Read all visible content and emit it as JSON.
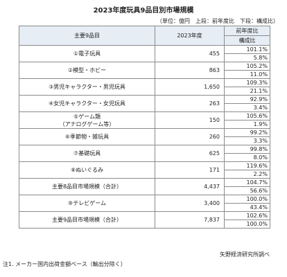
{
  "title": "2023年度玩具9品目別市場規模",
  "unit_note": "（単位：億円　上段：前年度比　下段：構成比）",
  "headers": {
    "category": "主要9品目",
    "year": "2023年度",
    "yoy": "前年度比",
    "share": "構成比"
  },
  "rows": [
    {
      "name": "①電子玩具",
      "size": "455",
      "yoy": "101.1%",
      "share": "5.8%"
    },
    {
      "name": "②模型・ホビー",
      "size": "863",
      "yoy": "105.2%",
      "share": "11.0%"
    },
    {
      "name": "③男児キャラクター・男児玩具",
      "size": "1,650",
      "yoy": "109.3%",
      "share": "21.1%"
    },
    {
      "name": "④女児キャラクター・女児玩具",
      "size": "263",
      "yoy": "92.9%",
      "share": "3.4%"
    },
    {
      "name": "⑤ゲーム類",
      "name2": "（アナログゲーム等）",
      "size": "150",
      "yoy": "105.6%",
      "share": "1.9%"
    },
    {
      "name": "⑥季節物・雑玩具",
      "size": "260",
      "yoy": "99.2%",
      "share": "3.3%"
    },
    {
      "name": "⑦基礎玩具",
      "size": "625",
      "yoy": "99.8%",
      "share": "8.0%"
    },
    {
      "name": "⑧ぬいぐるみ",
      "size": "171",
      "yoy": "119.6%",
      "share": "2.2%"
    },
    {
      "name": "主要8品目市場規模（合計）",
      "size": "4,437",
      "yoy": "104.7%",
      "share": "56.6%"
    },
    {
      "name": "⑨テレビゲーム",
      "size": "3,400",
      "yoy": "100.0%",
      "share": "43.4%"
    },
    {
      "name": "主要9品目市場規模（合計）",
      "size": "7,837",
      "yoy": "102.6%",
      "share": "100.0%"
    }
  ],
  "source": "矢野経済研究所調べ",
  "note": "注1. メーカー国内出荷金額ベース（輸出分除く）"
}
